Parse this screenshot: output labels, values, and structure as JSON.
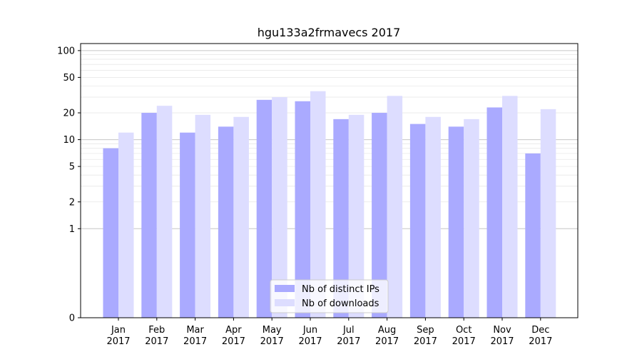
{
  "chart_data": {
    "type": "bar",
    "title": "hgu133a2frmavecs 2017",
    "xlabel": "",
    "ylabel": "",
    "yscale": "symlog",
    "ylim": [
      0,
      120
    ],
    "yticks": [
      0,
      1,
      2,
      5,
      10,
      20,
      50,
      100
    ],
    "grid": true,
    "legend_position": "bottom-center",
    "categories": [
      [
        "Jan",
        "2017"
      ],
      [
        "Feb",
        "2017"
      ],
      [
        "Mar",
        "2017"
      ],
      [
        "Apr",
        "2017"
      ],
      [
        "May",
        "2017"
      ],
      [
        "Jun",
        "2017"
      ],
      [
        "Jul",
        "2017"
      ],
      [
        "Aug",
        "2017"
      ],
      [
        "Sep",
        "2017"
      ],
      [
        "Oct",
        "2017"
      ],
      [
        "Nov",
        "2017"
      ],
      [
        "Dec",
        "2017"
      ]
    ],
    "series": [
      {
        "name": "Nb of distinct IPs",
        "color": "#aaaaff",
        "values": [
          8,
          20,
          12,
          14,
          28,
          27,
          17,
          20,
          15,
          14,
          23,
          7
        ]
      },
      {
        "name": "Nb of downloads",
        "color": "#ddddff",
        "values": [
          12,
          24,
          19,
          18,
          30,
          35,
          19,
          31,
          18,
          17,
          31,
          22
        ]
      }
    ]
  }
}
